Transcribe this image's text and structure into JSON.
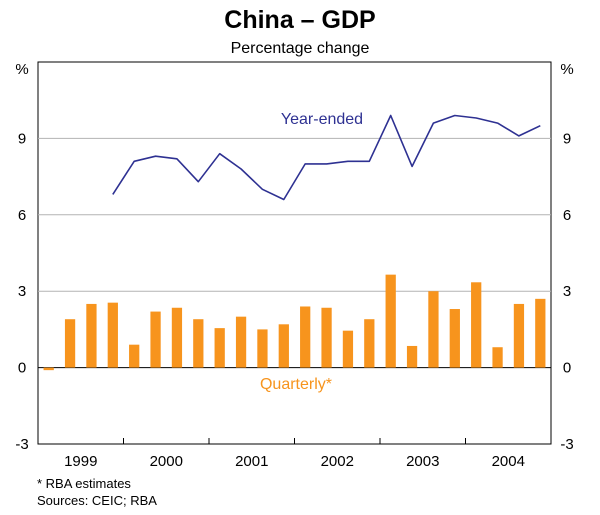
{
  "chart_data": {
    "type": "bar+line",
    "title": "China – GDP",
    "subtitle": "Percentage change",
    "y_unit_left": "%",
    "y_unit_right": "%",
    "ylim": [
      -3,
      12
    ],
    "yticks": [
      -3,
      0,
      3,
      6,
      9
    ],
    "year_labels": [
      "1999",
      "2000",
      "2001",
      "2002",
      "2003",
      "2004"
    ],
    "quarters": [
      "1999-Q1",
      "1999-Q2",
      "1999-Q3",
      "1999-Q4",
      "2000-Q1",
      "2000-Q2",
      "2000-Q3",
      "2000-Q4",
      "2001-Q1",
      "2001-Q2",
      "2001-Q3",
      "2001-Q4",
      "2002-Q1",
      "2002-Q2",
      "2002-Q3",
      "2002-Q4",
      "2003-Q1",
      "2003-Q2",
      "2003-Q3",
      "2003-Q4",
      "2004-Q1",
      "2004-Q2",
      "2004-Q3",
      "2004-Q4"
    ],
    "series": [
      {
        "name": "Quarterly*",
        "kind": "bar",
        "color": "#f7941d",
        "values": [
          -0.1,
          1.9,
          2.5,
          2.55,
          0.9,
          2.2,
          2.35,
          1.9,
          1.55,
          2.0,
          1.5,
          1.7,
          2.4,
          2.35,
          1.45,
          1.9,
          3.65,
          0.85,
          3.0,
          2.3,
          3.35,
          0.8,
          2.5,
          2.7
        ]
      },
      {
        "name": "Year-ended",
        "kind": "line",
        "color": "#2e3192",
        "values": [
          null,
          null,
          null,
          6.8,
          8.1,
          8.3,
          8.2,
          7.3,
          8.4,
          7.8,
          7.0,
          6.6,
          8.0,
          8.0,
          8.1,
          8.1,
          9.9,
          7.9,
          9.6,
          9.9,
          9.8,
          9.6,
          9.1,
          9.5
        ]
      }
    ],
    "gridlines": true
  },
  "footnotes": {
    "note": "*   RBA estimates",
    "sources": "Sources: CEIC; RBA"
  }
}
